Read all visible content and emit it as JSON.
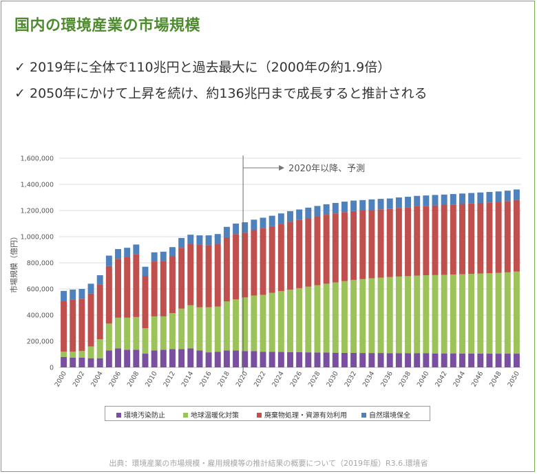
{
  "title": "国内の環境産業の市場規模",
  "bullets": [
    {
      "mark": "✓",
      "text": "2019年に全体で110兆円と過去最大に（2000年の約1.9倍）"
    },
    {
      "mark": "✓",
      "text": "2050年にかけて上昇を続け、約136兆円まで成長すると推計される"
    }
  ],
  "source": "出典：環境産業の市場規模・雇用規模等の推計結果の概要について（2019年版）R3.6.環境省",
  "chart_data": {
    "type": "bar",
    "stacked": true,
    "ylabel": "市場規模（億円）",
    "ylim": [
      0,
      1600000
    ],
    "yticks": [
      0,
      200000,
      400000,
      600000,
      800000,
      1000000,
      1200000,
      1400000,
      1600000
    ],
    "ytick_labels": [
      "0",
      "200,000",
      "400,000",
      "600,000",
      "800,000",
      "1,000,000",
      "1,200,000",
      "1,400,000",
      "1,600,000"
    ],
    "x": [
      2000,
      2001,
      2002,
      2003,
      2004,
      2005,
      2006,
      2007,
      2008,
      2009,
      2010,
      2011,
      2012,
      2013,
      2014,
      2015,
      2016,
      2017,
      2018,
      2019,
      2020,
      2021,
      2022,
      2023,
      2024,
      2025,
      2026,
      2027,
      2028,
      2029,
      2030,
      2031,
      2032,
      2033,
      2034,
      2035,
      2036,
      2037,
      2038,
      2039,
      2040,
      2041,
      2042,
      2043,
      2044,
      2045,
      2046,
      2047,
      2048,
      2049,
      2050
    ],
    "xtick_labels": [
      "2000",
      "2002",
      "2004",
      "2006",
      "2008",
      "2010",
      "2012",
      "2014",
      "2016",
      "2018",
      "2020",
      "2022",
      "2024",
      "2026",
      "2028",
      "2030",
      "2032",
      "2034",
      "2036",
      "2038",
      "2040",
      "2042",
      "2044",
      "2046",
      "2048",
      "2050"
    ],
    "annotation": "2020年以降、予測",
    "grid": true,
    "legend_position": "bottom",
    "series": [
      {
        "name": "環境汚染防止",
        "color": "#7a4fa0",
        "values": [
          80000,
          75000,
          75000,
          70000,
          70000,
          130000,
          145000,
          135000,
          135000,
          105000,
          130000,
          135000,
          140000,
          140000,
          145000,
          130000,
          115000,
          120000,
          130000,
          130000,
          125000,
          125000,
          120000,
          120000,
          118000,
          117000,
          116000,
          115000,
          114000,
          113000,
          112000,
          111000,
          111000,
          110000,
          110000,
          110000,
          109000,
          109000,
          108000,
          108000,
          108000,
          107000,
          107000,
          107000,
          106000,
          106000,
          106000,
          105000,
          105000,
          105000,
          105000
        ]
      },
      {
        "name": "地球温暖化対策",
        "color": "#9bc35a",
        "values": [
          40000,
          45000,
          50000,
          90000,
          145000,
          205000,
          235000,
          245000,
          250000,
          195000,
          260000,
          255000,
          275000,
          310000,
          330000,
          330000,
          345000,
          345000,
          375000,
          390000,
          410000,
          425000,
          435000,
          450000,
          465000,
          478000,
          490000,
          503000,
          515000,
          527000,
          538000,
          549000,
          558000,
          565000,
          572000,
          577000,
          582000,
          586000,
          590000,
          594000,
          597000,
          599000,
          601000,
          603000,
          606000,
          609000,
          612000,
          615000,
          618000,
          622000,
          628000
        ]
      },
      {
        "name": "廃棄物処理・資源有効利用",
        "color": "#c0504d",
        "values": [
          390000,
          400000,
          400000,
          405000,
          420000,
          440000,
          450000,
          465000,
          480000,
          400000,
          420000,
          425000,
          435000,
          465000,
          470000,
          480000,
          475000,
          480000,
          490000,
          500000,
          495000,
          500000,
          510000,
          510000,
          515000,
          520000,
          522000,
          524000,
          526000,
          528000,
          528000,
          528000,
          527000,
          525000,
          523000,
          522000,
          521000,
          525000,
          527000,
          530000,
          530000,
          533000,
          534000,
          536000,
          538000,
          539000,
          540000,
          542000,
          543000,
          545000,
          548000
        ]
      },
      {
        "name": "自然環境保全",
        "color": "#4f81bd",
        "values": [
          75000,
          75000,
          75000,
          75000,
          70000,
          80000,
          75000,
          70000,
          75000,
          70000,
          70000,
          70000,
          70000,
          75000,
          70000,
          70000,
          75000,
          75000,
          80000,
          80000,
          80000,
          80000,
          80000,
          80000,
          80000,
          80000,
          80000,
          80000,
          80000,
          80000,
          80000,
          80000,
          80000,
          80000,
          80000,
          80000,
          80000,
          80000,
          80000,
          80000,
          80000,
          80000,
          80000,
          80000,
          80000,
          80000,
          80000,
          80000,
          80000,
          80000,
          80000
        ]
      }
    ]
  }
}
